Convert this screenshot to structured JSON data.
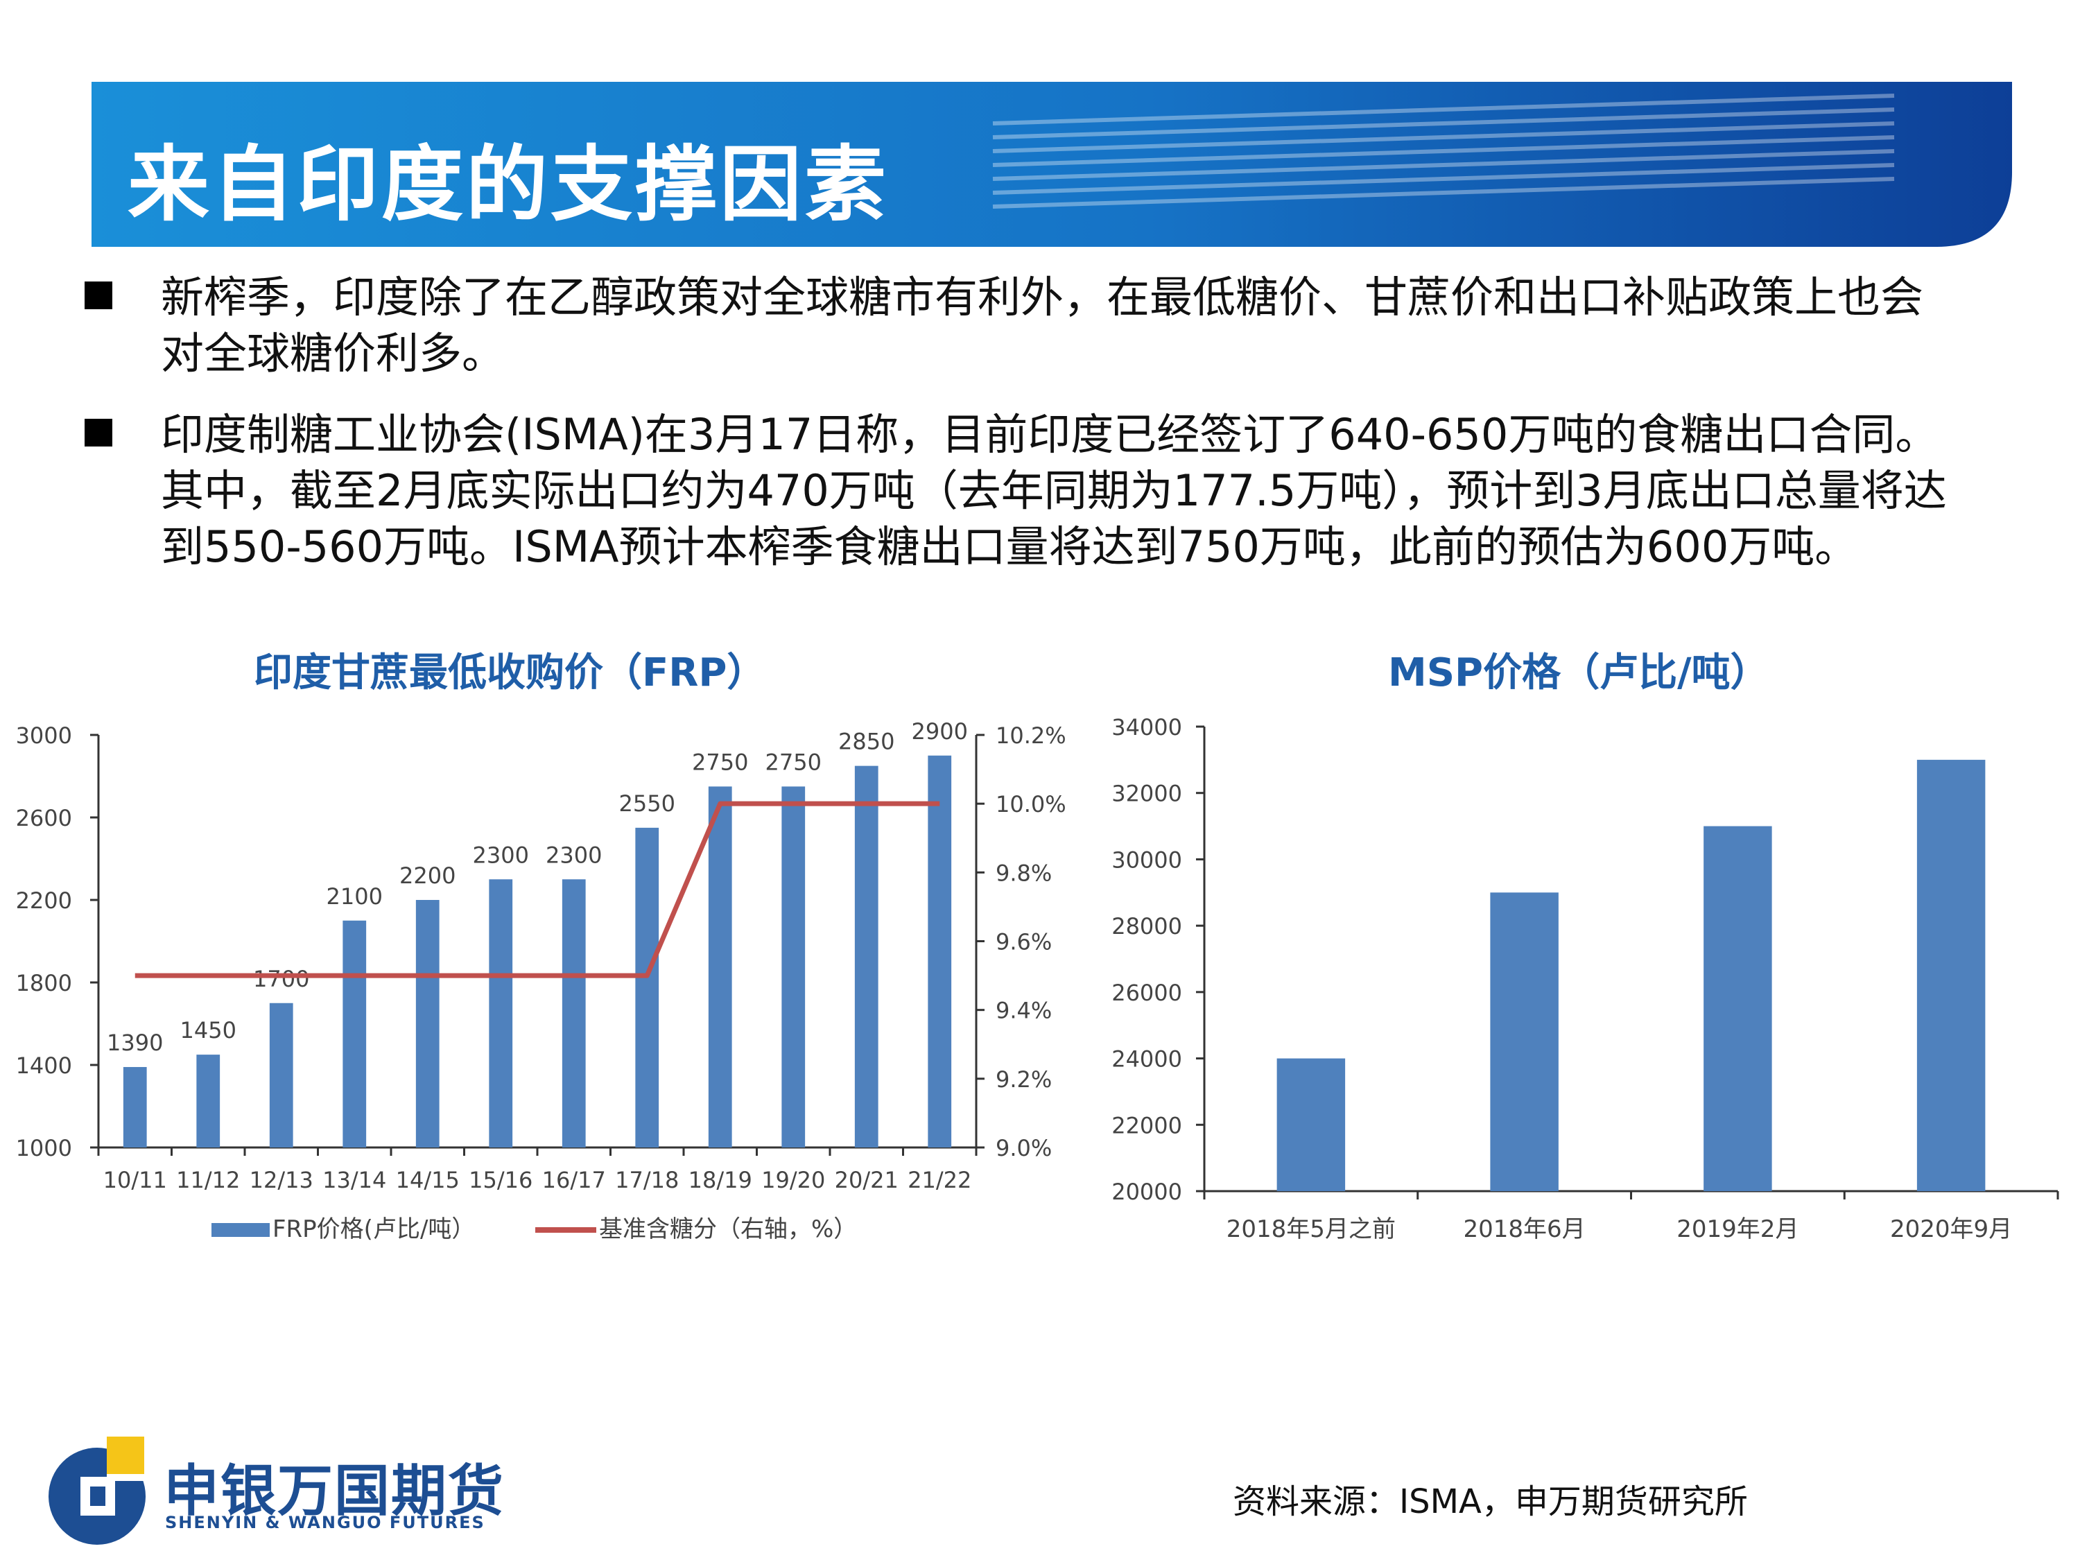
{
  "header": {
    "title": "来自印度的支撑因素"
  },
  "bullets": [
    "新榨季，印度除了在乙醇政策对全球糖市有利外，在最低糖价、甘蔗价和出口补贴政策上也会对全球糖价利多。",
    "印度制糖工业协会(ISMA)在3月17日称，目前印度已经签订了640-650万吨的食糖出口合同。其中，截至2月底实际出口约为470万吨（去年同期为177.5万吨），预计到3月底出口总量将达到550-560万吨。ISMA预计本榨季食糖出口量将达到750万吨，此前的预估为600万吨。"
  ],
  "chart_data": [
    {
      "type": "bar",
      "title": "印度甘蔗最低收购价（FRP）",
      "categories": [
        "10/11",
        "11/12",
        "12/13",
        "13/14",
        "14/15",
        "15/16",
        "16/17",
        "17/18",
        "18/19",
        "19/20",
        "20/21",
        "21/22"
      ],
      "series": [
        {
          "name": "FRP价格(卢比/吨）",
          "type": "bar",
          "axis": "left",
          "color": "#4f81bd",
          "values": [
            1390,
            1450,
            1700,
            2100,
            2200,
            2300,
            2300,
            2550,
            2750,
            2750,
            2850,
            2900
          ]
        },
        {
          "name": "基准含糖分（右轴，%）",
          "type": "line",
          "axis": "right",
          "color": "#c0504d",
          "values": [
            9.5,
            9.5,
            9.5,
            9.5,
            9.5,
            9.5,
            9.5,
            9.5,
            10.0,
            10.0,
            10.0,
            10.0
          ]
        }
      ],
      "ylim": [
        1000,
        3000
      ],
      "yticks": [
        "1000",
        "1400",
        "1800",
        "2200",
        "2600",
        "3000"
      ],
      "y2lim": [
        9.0,
        10.2
      ],
      "y2ticks": [
        "9.0%",
        "9.2%",
        "9.4%",
        "9.6%",
        "9.8%",
        "10.0%",
        "10.2%"
      ],
      "grid": false,
      "legend": "bottom"
    },
    {
      "type": "bar",
      "title": "MSP价格（卢比/吨）",
      "categories": [
        "2018年5月之前",
        "2018年6月",
        "2019年2月",
        "2020年9月"
      ],
      "series": [
        {
          "color": "#4f81bd",
          "values": [
            24000,
            29000,
            31000,
            33000
          ]
        }
      ],
      "ylim": [
        20000,
        34000
      ],
      "yticks": [
        "20000",
        "22000",
        "24000",
        "26000",
        "28000",
        "30000",
        "32000",
        "34000"
      ],
      "grid": false,
      "legend": "none"
    }
  ],
  "footer": {
    "source": "资料来源：ISMA，申万期货研究所",
    "logo_cn": "申银万国期货",
    "logo_en": "SHENYIN & WANGUO FUTURES"
  }
}
